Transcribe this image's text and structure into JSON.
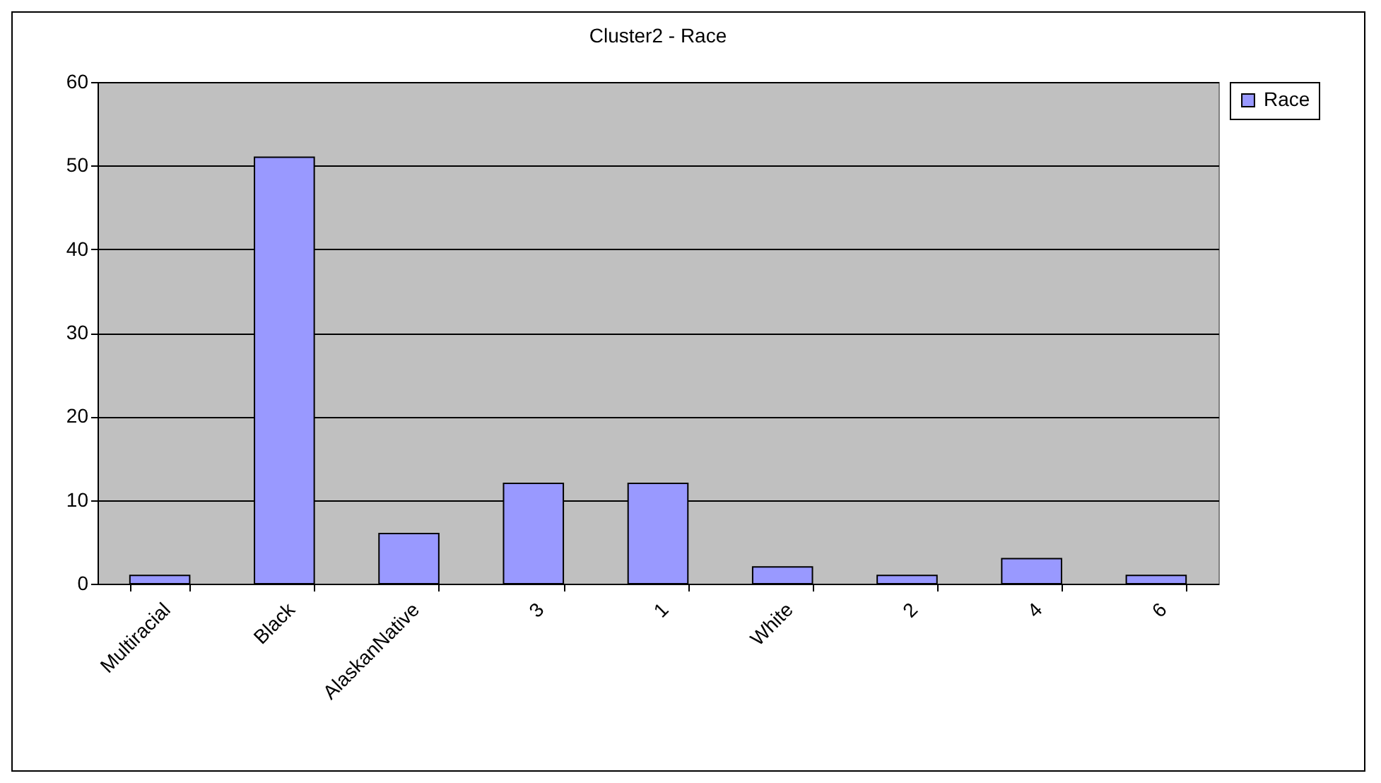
{
  "chart_data": {
    "type": "bar",
    "title": "Cluster2 - Race",
    "categories": [
      "Multiracial",
      "Black",
      "AlaskanNative",
      "3",
      "1",
      "White",
      "2",
      "4",
      "6"
    ],
    "series": [
      {
        "name": "Race",
        "color": "#9999ff",
        "values": [
          1,
          51,
          6,
          12,
          12,
          2,
          1,
          3,
          1
        ]
      }
    ],
    "ylim": [
      0,
      60
    ],
    "yticks": [
      0,
      10,
      20,
      30,
      40,
      50,
      60
    ],
    "grid": "y",
    "legend": "right"
  }
}
